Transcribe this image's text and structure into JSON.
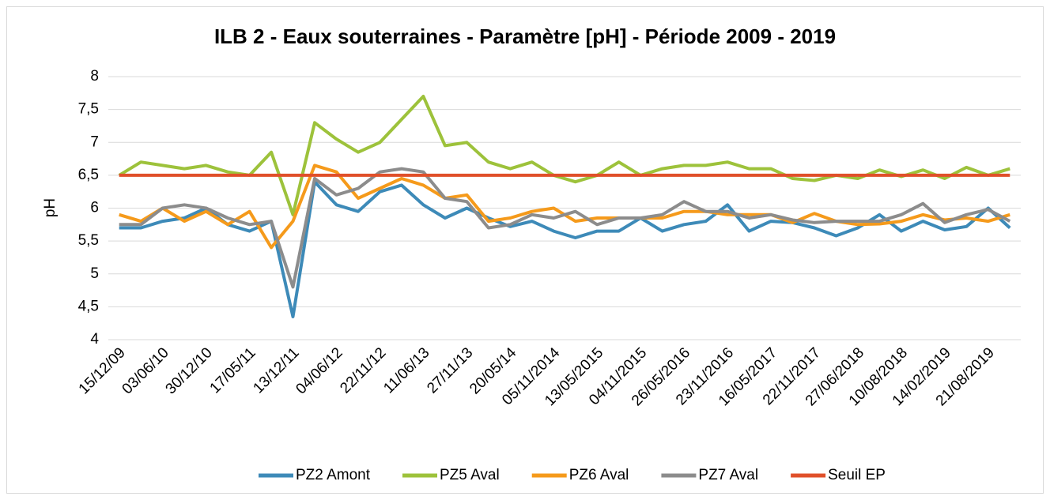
{
  "chart_data": {
    "type": "line",
    "title": "ILB 2 - Eaux souterraines - Paramètre [pH] - Période 2009 - 2019",
    "y_label": "pH",
    "categories": [
      "15/12/09",
      null,
      "03/06/10",
      null,
      "30/12/10",
      null,
      "17/05/11",
      null,
      "13/12/11",
      null,
      "04/06/12",
      null,
      "22/11/12",
      null,
      "11/06/13",
      null,
      "27/11/13",
      null,
      "20/05/14",
      null,
      "05/11/2014",
      null,
      "13/05/2015",
      null,
      "04/11/2015",
      null,
      "26/05/2016",
      null,
      "23/11/2016",
      null,
      "16/05/2017",
      null,
      "22/11/2017",
      null,
      "27/06/2018",
      null,
      "10/08/2018",
      null,
      "14/02/2019",
      null,
      "21/08/2019",
      null
    ],
    "series": [
      {
        "name": "PZ2 Amont",
        "color": "#3d8ab8",
        "values": [
          5.7,
          5.7,
          5.8,
          5.85,
          6.0,
          5.75,
          5.65,
          5.8,
          4.35,
          6.4,
          6.05,
          5.95,
          6.25,
          6.35,
          6.05,
          5.85,
          6.0,
          5.85,
          5.72,
          5.8,
          5.65,
          5.55,
          5.65,
          5.65,
          5.85,
          5.65,
          5.75,
          5.8,
          6.05,
          5.65,
          5.8,
          5.78,
          5.7,
          5.58,
          5.7,
          5.9,
          5.65,
          5.8,
          5.67,
          5.72,
          6.0,
          5.7
        ]
      },
      {
        "name": "PZ5 Aval",
        "color": "#9dc23b",
        "values": [
          6.5,
          6.7,
          6.65,
          6.6,
          6.65,
          6.55,
          6.5,
          6.85,
          5.9,
          7.3,
          7.05,
          6.85,
          7.0,
          7.35,
          7.7,
          6.95,
          7.0,
          6.7,
          6.6,
          6.7,
          6.5,
          6.4,
          6.5,
          6.7,
          6.5,
          6.6,
          6.65,
          6.65,
          6.7,
          6.6,
          6.6,
          6.45,
          6.42,
          6.5,
          6.45,
          6.58,
          6.48,
          6.58,
          6.45,
          6.62,
          6.5,
          6.6
        ]
      },
      {
        "name": "PZ6 Aval",
        "color": "#f59a1b",
        "values": [
          5.9,
          5.8,
          6.0,
          5.8,
          5.95,
          5.75,
          5.95,
          5.4,
          5.8,
          6.65,
          6.55,
          6.15,
          6.3,
          6.45,
          6.35,
          6.15,
          6.2,
          5.8,
          5.85,
          5.95,
          6.0,
          5.8,
          5.85,
          5.85,
          5.85,
          5.85,
          5.95,
          5.95,
          5.9,
          5.9,
          5.9,
          5.78,
          5.92,
          5.8,
          5.75,
          5.76,
          5.8,
          5.9,
          5.82,
          5.85,
          5.8,
          5.9
        ]
      },
      {
        "name": "PZ7 Aval",
        "color": "#8c8c8c",
        "values": [
          5.75,
          5.75,
          6.0,
          6.05,
          6.0,
          5.85,
          5.75,
          5.8,
          4.8,
          6.45,
          6.2,
          6.3,
          6.55,
          6.6,
          6.55,
          6.15,
          6.1,
          5.7,
          5.75,
          5.9,
          5.85,
          5.95,
          5.75,
          5.85,
          5.85,
          5.9,
          6.1,
          5.95,
          5.95,
          5.85,
          5.9,
          5.82,
          5.78,
          5.8,
          5.8,
          5.8,
          5.9,
          6.07,
          5.78,
          5.9,
          5.98,
          5.8
        ]
      },
      {
        "name": "Seuil EP",
        "color": "#e0502a",
        "values": [
          6.5,
          6.5,
          6.5,
          6.5,
          6.5,
          6.5,
          6.5,
          6.5,
          6.5,
          6.5,
          6.5,
          6.5,
          6.5,
          6.5,
          6.5,
          6.5,
          6.5,
          6.5,
          6.5,
          6.5,
          6.5,
          6.5,
          6.5,
          6.5,
          6.5,
          6.5,
          6.5,
          6.5,
          6.5,
          6.5,
          6.5,
          6.5,
          6.5,
          6.5,
          6.5,
          6.5,
          6.5,
          6.5,
          6.5,
          6.5,
          6.5,
          6.5
        ]
      }
    ],
    "ylim": [
      4,
      8
    ],
    "yticks": [
      4,
      {
        "value": 4.5,
        "label": "4,5"
      },
      5,
      {
        "value": 5.5,
        "label": "5,5"
      },
      6,
      {
        "value": 6.5,
        "label": "6,5"
      },
      7,
      {
        "value": 7.5,
        "label": "7,5"
      },
      8
    ],
    "grid": true,
    "legend": "bottom"
  }
}
